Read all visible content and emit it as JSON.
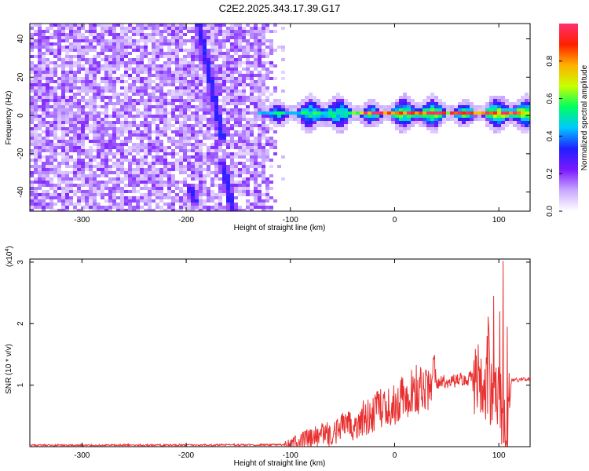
{
  "figure": {
    "title": "C2E2.2025.343.17.39.G17"
  },
  "chart_data": [
    {
      "type": "heatmap",
      "xlabel": "Height of straight line (km)",
      "ylabel": "Frequency (Hz)",
      "xlim": [
        -350,
        130
      ],
      "ylim": [
        -50,
        48
      ],
      "xticks": [
        -300,
        -200,
        -100,
        0,
        100
      ],
      "yticks": [
        -40,
        -20,
        0,
        20,
        40
      ],
      "colorbar": {
        "label": "Normalized spectral amplitude",
        "range": [
          0,
          1
        ],
        "ticks": [
          "0.0",
          "0.2",
          "0.4",
          "0.6",
          "0.8"
        ],
        "colors": [
          "#ffffff",
          "#c9a8ff",
          "#7a18ff",
          "#2020ff",
          "#00c8ff",
          "#00ff60",
          "#c8ff00",
          "#ffb000",
          "#ff2000",
          "#ff3070"
        ]
      },
      "noise_region_km": [
        -350,
        -110
      ],
      "signal_band": {
        "x_start": -130,
        "x_end": 130,
        "center_hz": 1,
        "halfwidth_hz": 4
      },
      "diagonal_traces": [
        {
          "x_start": -188,
          "y_start": 48,
          "x_end": -165,
          "y_end": -12
        },
        {
          "x_start": -196,
          "y_start": -38,
          "x_end": -192,
          "y_end": -45
        },
        {
          "x_start": -165,
          "y_start": -25,
          "x_end": -155,
          "y_end": -50
        }
      ]
    },
    {
      "type": "line",
      "xlabel": "Height of straight line (km)",
      "ylabel": "SNR (10 * v/v)",
      "multiplier": "(x10",
      "multiplier_exp": "4",
      "xlim": [
        -350,
        130
      ],
      "ylim": [
        0,
        3.05
      ],
      "xticks": [
        -300,
        -200,
        -100,
        0,
        100
      ],
      "yticks": [
        1,
        2,
        3
      ],
      "series": [
        {
          "color": "#e83030",
          "anchors_x": [
            -350,
            -105,
            -100,
            -80,
            -60,
            -40,
            -20,
            0,
            20,
            40,
            60,
            80,
            90,
            100,
            108,
            112,
            130
          ],
          "anchors_y": [
            0.02,
            0.03,
            0.07,
            0.13,
            0.22,
            0.36,
            0.56,
            0.72,
            0.93,
            1.04,
            1.08,
            1.12,
            1.0,
            0.75,
            0.05,
            1.08,
            1.1
          ],
          "peaks": [
            [
              -50,
              0.55
            ],
            [
              -30,
              0.75
            ],
            [
              -15,
              0.85
            ],
            [
              88,
              1.45
            ],
            [
              95,
              2.45
            ],
            [
              101,
              2.2
            ],
            [
              104,
              3.02
            ],
            [
              108,
              1.95
            ]
          ]
        }
      ]
    }
  ]
}
